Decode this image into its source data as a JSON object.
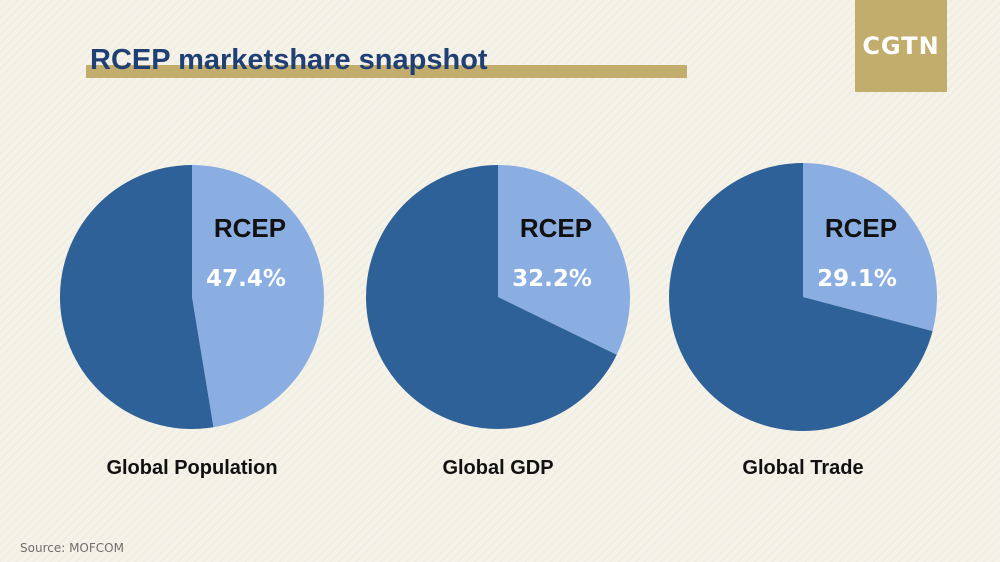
{
  "title": "RCEP marketshare snapshot",
  "logo": "CGTN",
  "source": "Source: MOFCOM",
  "colors": {
    "rcep": "#8aaee2",
    "rest": "#2f6199",
    "accent": "#c2ad6c",
    "title": "#1f3f75"
  },
  "chart_data": [
    {
      "type": "pie",
      "title": "Global Population",
      "slices": [
        {
          "label": "RCEP",
          "value": 47.4,
          "display": "47.4%"
        },
        {
          "label": "",
          "value": 52.6
        }
      ]
    },
    {
      "type": "pie",
      "title": "Global GDP",
      "slices": [
        {
          "label": "RCEP",
          "value": 32.2,
          "display": "32.2%"
        },
        {
          "label": "",
          "value": 67.8
        }
      ]
    },
    {
      "type": "pie",
      "title": "Global Trade",
      "slices": [
        {
          "label": "RCEP",
          "value": 29.1,
          "display": "29.1%"
        },
        {
          "label": "",
          "value": 70.9
        }
      ]
    }
  ]
}
